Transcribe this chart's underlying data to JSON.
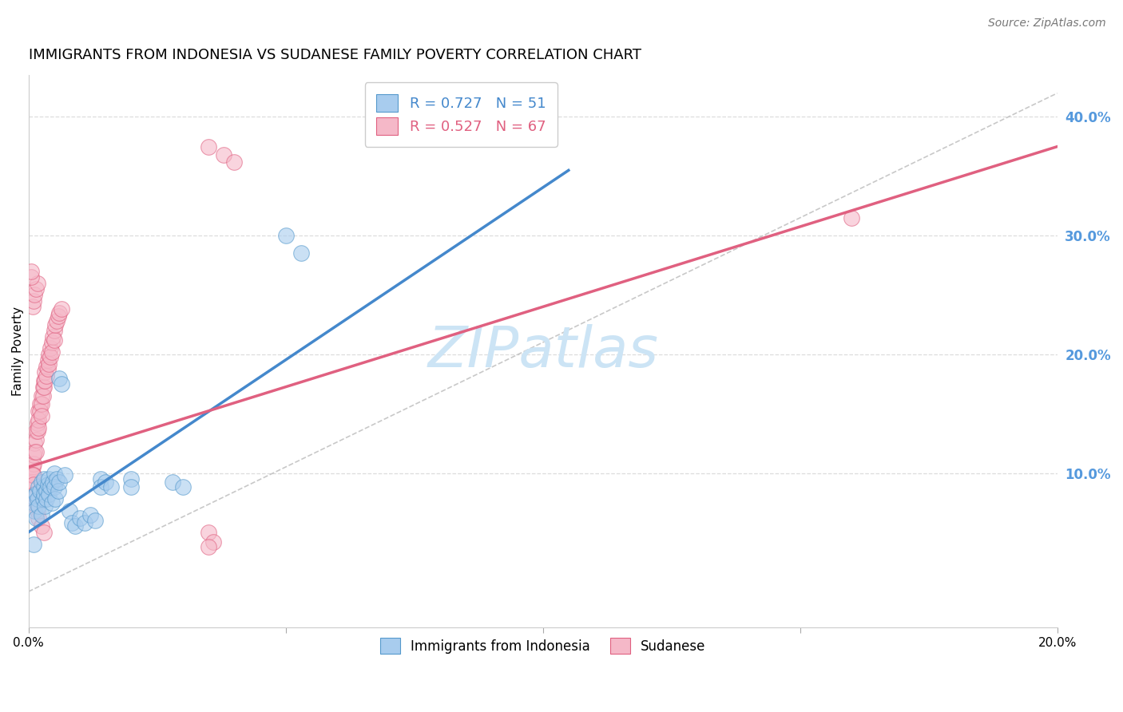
{
  "title": "IMMIGRANTS FROM INDONESIA VS SUDANESE FAMILY POVERTY CORRELATION CHART",
  "source": "Source: ZipAtlas.com",
  "ylabel_left": "Family Poverty",
  "x_min": 0.0,
  "x_max": 0.2,
  "y_min": -0.03,
  "y_max": 0.435,
  "right_yticks": [
    0.1,
    0.2,
    0.3,
    0.4
  ],
  "right_ytick_labels": [
    "10.0%",
    "20.0%",
    "30.0%",
    "40.0%"
  ],
  "xticks": [
    0.0,
    0.05,
    0.1,
    0.15,
    0.2
  ],
  "xtick_labels": [
    "0.0%",
    "",
    "",
    "",
    "20.0%"
  ],
  "watermark": "ZIPatlas",
  "legend_blue_r": "R = 0.727",
  "legend_blue_n": "N = 51",
  "legend_pink_r": "R = 0.527",
  "legend_pink_n": "N = 67",
  "blue_color": "#a8ccee",
  "pink_color": "#f5b8c8",
  "blue_edge_color": "#5599cc",
  "pink_edge_color": "#e06080",
  "blue_line_color": "#4488cc",
  "pink_line_color": "#e06080",
  "blue_scatter": [
    [
      0.0008,
      0.08
    ],
    [
      0.001,
      0.075
    ],
    [
      0.0012,
      0.068
    ],
    [
      0.0015,
      0.082
    ],
    [
      0.0015,
      0.062
    ],
    [
      0.0018,
      0.078
    ],
    [
      0.002,
      0.088
    ],
    [
      0.002,
      0.072
    ],
    [
      0.0022,
      0.085
    ],
    [
      0.0025,
      0.065
    ],
    [
      0.0025,
      0.092
    ],
    [
      0.0028,
      0.078
    ],
    [
      0.003,
      0.088
    ],
    [
      0.003,
      0.082
    ],
    [
      0.003,
      0.095
    ],
    [
      0.0032,
      0.072
    ],
    [
      0.0035,
      0.085
    ],
    [
      0.0035,
      0.078
    ],
    [
      0.0038,
      0.09
    ],
    [
      0.004,
      0.095
    ],
    [
      0.004,
      0.082
    ],
    [
      0.0042,
      0.088
    ],
    [
      0.0045,
      0.075
    ],
    [
      0.0048,
      0.092
    ],
    [
      0.005,
      0.1
    ],
    [
      0.005,
      0.088
    ],
    [
      0.0052,
      0.078
    ],
    [
      0.0055,
      0.095
    ],
    [
      0.0058,
      0.085
    ],
    [
      0.006,
      0.092
    ],
    [
      0.006,
      0.18
    ],
    [
      0.0065,
      0.175
    ],
    [
      0.007,
      0.098
    ],
    [
      0.008,
      0.068
    ],
    [
      0.0085,
      0.058
    ],
    [
      0.009,
      0.055
    ],
    [
      0.01,
      0.062
    ],
    [
      0.011,
      0.058
    ],
    [
      0.012,
      0.065
    ],
    [
      0.013,
      0.06
    ],
    [
      0.014,
      0.095
    ],
    [
      0.014,
      0.088
    ],
    [
      0.015,
      0.092
    ],
    [
      0.016,
      0.088
    ],
    [
      0.02,
      0.095
    ],
    [
      0.02,
      0.088
    ],
    [
      0.028,
      0.092
    ],
    [
      0.03,
      0.088
    ],
    [
      0.05,
      0.3
    ],
    [
      0.053,
      0.285
    ],
    [
      0.001,
      0.04
    ]
  ],
  "pink_scatter": [
    [
      0.0005,
      0.098
    ],
    [
      0.0008,
      0.105
    ],
    [
      0.0008,
      0.092
    ],
    [
      0.001,
      0.115
    ],
    [
      0.001,
      0.108
    ],
    [
      0.001,
      0.098
    ],
    [
      0.0012,
      0.125
    ],
    [
      0.0012,
      0.118
    ],
    [
      0.0015,
      0.135
    ],
    [
      0.0015,
      0.128
    ],
    [
      0.0015,
      0.118
    ],
    [
      0.0018,
      0.142
    ],
    [
      0.0018,
      0.135
    ],
    [
      0.002,
      0.152
    ],
    [
      0.002,
      0.145
    ],
    [
      0.002,
      0.138
    ],
    [
      0.0022,
      0.158
    ],
    [
      0.0022,
      0.152
    ],
    [
      0.0025,
      0.165
    ],
    [
      0.0025,
      0.158
    ],
    [
      0.0025,
      0.148
    ],
    [
      0.0028,
      0.172
    ],
    [
      0.0028,
      0.165
    ],
    [
      0.003,
      0.178
    ],
    [
      0.003,
      0.172
    ],
    [
      0.0032,
      0.185
    ],
    [
      0.0032,
      0.178
    ],
    [
      0.0035,
      0.19
    ],
    [
      0.0035,
      0.182
    ],
    [
      0.0038,
      0.195
    ],
    [
      0.0038,
      0.188
    ],
    [
      0.004,
      0.2
    ],
    [
      0.004,
      0.192
    ],
    [
      0.0042,
      0.205
    ],
    [
      0.0042,
      0.198
    ],
    [
      0.0045,
      0.21
    ],
    [
      0.0045,
      0.202
    ],
    [
      0.0048,
      0.215
    ],
    [
      0.005,
      0.22
    ],
    [
      0.005,
      0.212
    ],
    [
      0.0052,
      0.225
    ],
    [
      0.0055,
      0.228
    ],
    [
      0.0058,
      0.232
    ],
    [
      0.006,
      0.235
    ],
    [
      0.0065,
      0.238
    ],
    [
      0.0008,
      0.24
    ],
    [
      0.001,
      0.245
    ],
    [
      0.0012,
      0.25
    ],
    [
      0.0015,
      0.255
    ],
    [
      0.0018,
      0.26
    ],
    [
      0.0005,
      0.265
    ],
    [
      0.0005,
      0.27
    ],
    [
      0.0008,
      0.098
    ],
    [
      0.001,
      0.09
    ],
    [
      0.0012,
      0.082
    ],
    [
      0.0015,
      0.075
    ],
    [
      0.0018,
      0.068
    ],
    [
      0.002,
      0.062
    ],
    [
      0.0025,
      0.055
    ],
    [
      0.003,
      0.05
    ],
    [
      0.035,
      0.05
    ],
    [
      0.036,
      0.042
    ],
    [
      0.035,
      0.375
    ],
    [
      0.038,
      0.368
    ],
    [
      0.04,
      0.362
    ],
    [
      0.16,
      0.315
    ],
    [
      0.035,
      0.038
    ]
  ],
  "blue_line_x": [
    0.0,
    0.105
  ],
  "blue_line_y": [
    0.05,
    0.355
  ],
  "pink_line_x": [
    0.0,
    0.2
  ],
  "pink_line_y": [
    0.105,
    0.375
  ],
  "ref_line_x": [
    0.0,
    0.2
  ],
  "ref_line_y": [
    0.0,
    0.42
  ],
  "grid_color": "#dddddd",
  "background_color": "#ffffff",
  "title_fontsize": 13,
  "axis_label_fontsize": 11,
  "tick_fontsize": 11,
  "source_fontsize": 10,
  "watermark_fontsize": 52,
  "watermark_color": "#cce4f5",
  "right_tick_color": "#5599dd",
  "legend_r_color_blue": "#4488cc",
  "legend_r_color_pink": "#e06080",
  "legend_n_color_blue": "#4488cc",
  "legend_n_color_pink": "#e06080"
}
